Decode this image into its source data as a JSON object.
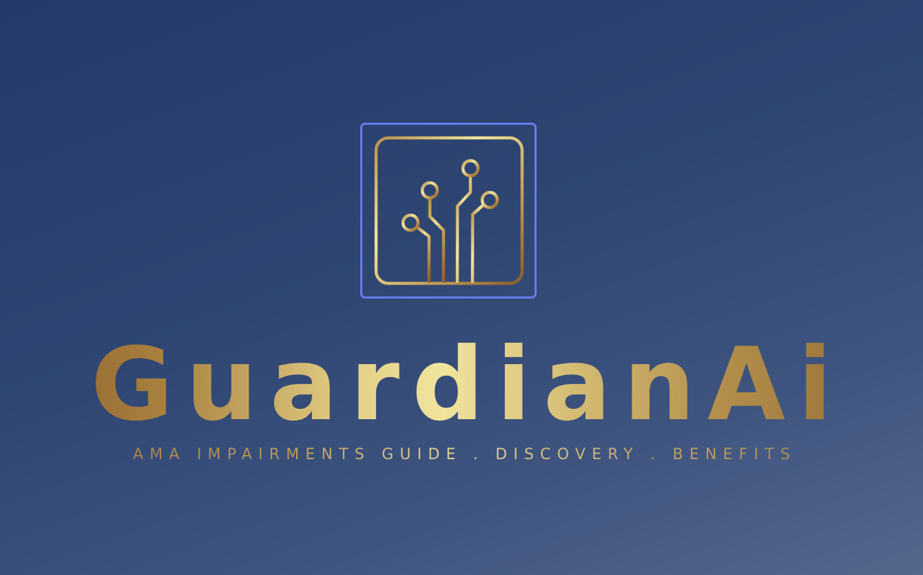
{
  "brand": {
    "name": "GuardianAi",
    "tagline": "AMA IMPAIRMENTS GUIDE . DISCOVERY . BENEFITS"
  },
  "logo": {
    "icon": "circuit-tree-icon",
    "frame_color": "#6b7cf0",
    "gold_light": "#f0e49c",
    "gold_dark": "#8a5e2a"
  },
  "background": {
    "from": "#243a6a",
    "to": "#56678d"
  }
}
